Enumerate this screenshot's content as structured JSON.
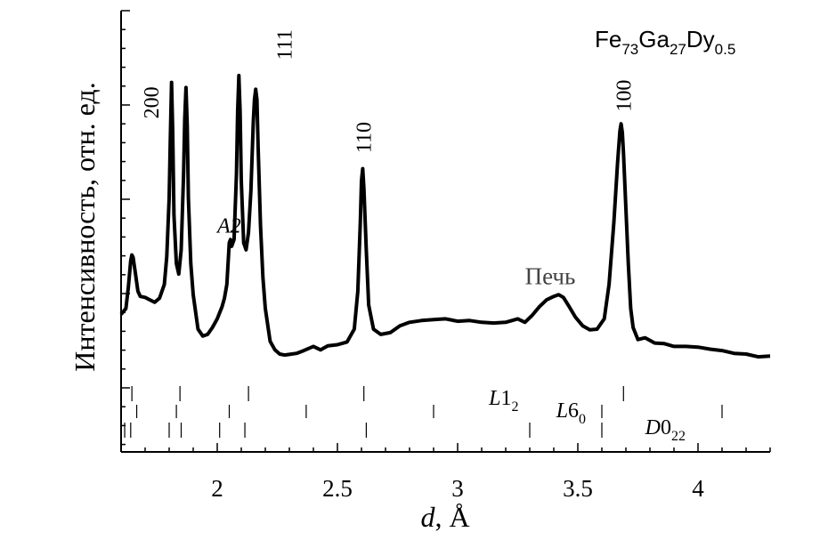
{
  "chart_data": {
    "type": "line",
    "title": "",
    "sample_label": {
      "main": "Fe",
      "s1": "73",
      "m2": "Ga",
      "s2": "27",
      "m3": "Dy",
      "s3": "0.5"
    },
    "xlabel": {
      "italic": "d",
      "rest": ", Å"
    },
    "ylabel": "Интенсивность, отн. ед.",
    "xlim": [
      1.6,
      4.3
    ],
    "ylim": [
      0,
      1
    ],
    "x_ticks": [
      {
        "v": 2,
        "label": "2"
      },
      {
        "v": 2.5,
        "label": "2.5"
      },
      {
        "v": 3,
        "label": "3"
      },
      {
        "v": 3.5,
        "label": "3.5"
      },
      {
        "v": 4,
        "label": "4"
      }
    ],
    "y_ticks_unlabeled": true,
    "grid": false,
    "series": [
      {
        "x": [
          1.6,
          1.62,
          1.63,
          1.64,
          1.645,
          1.65,
          1.66,
          1.67,
          1.68,
          1.7,
          1.72,
          1.74,
          1.76,
          1.78,
          1.79,
          1.8,
          1.805,
          1.81,
          1.815,
          1.82,
          1.83,
          1.84,
          1.85,
          1.86,
          1.865,
          1.87,
          1.875,
          1.88,
          1.89,
          1.9,
          1.92,
          1.94,
          1.96,
          1.98,
          2.0,
          2.02,
          2.03,
          2.04,
          2.05,
          2.055,
          2.06,
          2.07,
          2.08,
          2.085,
          2.09,
          2.095,
          2.1,
          2.11,
          2.12,
          2.13,
          2.14,
          2.15,
          2.155,
          2.16,
          2.165,
          2.17,
          2.18,
          2.19,
          2.2,
          2.22,
          2.24,
          2.26,
          2.28,
          2.3,
          2.33,
          2.36,
          2.4,
          2.43,
          2.46,
          2.5,
          2.54,
          2.57,
          2.585,
          2.595,
          2.6,
          2.605,
          2.61,
          2.62,
          2.63,
          2.65,
          2.68,
          2.72,
          2.76,
          2.8,
          2.85,
          2.9,
          2.95,
          3.0,
          3.05,
          3.1,
          3.15,
          3.2,
          3.25,
          3.28,
          3.31,
          3.34,
          3.37,
          3.4,
          3.42,
          3.44,
          3.46,
          3.49,
          3.52,
          3.55,
          3.58,
          3.61,
          3.63,
          3.65,
          3.665,
          3.675,
          3.68,
          3.685,
          3.69,
          3.7,
          3.71,
          3.72,
          3.73,
          3.75,
          3.78,
          3.82,
          3.86,
          3.9,
          3.95,
          4.0,
          4.05,
          4.1,
          4.15,
          4.2,
          4.25,
          4.3
        ],
        "y": [
          0.213,
          0.23,
          0.29,
          0.368,
          0.385,
          0.378,
          0.33,
          0.28,
          0.265,
          0.262,
          0.255,
          0.248,
          0.26,
          0.3,
          0.38,
          0.55,
          0.72,
          0.885,
          0.74,
          0.5,
          0.36,
          0.33,
          0.4,
          0.62,
          0.78,
          0.87,
          0.76,
          0.55,
          0.36,
          0.27,
          0.17,
          0.15,
          0.155,
          0.175,
          0.2,
          0.235,
          0.26,
          0.3,
          0.42,
          0.43,
          0.41,
          0.43,
          0.62,
          0.8,
          0.905,
          0.8,
          0.6,
          0.42,
          0.4,
          0.45,
          0.57,
          0.77,
          0.835,
          0.865,
          0.835,
          0.7,
          0.47,
          0.32,
          0.23,
          0.135,
          0.11,
          0.098,
          0.095,
          0.097,
          0.1,
          0.108,
          0.12,
          0.11,
          0.122,
          0.125,
          0.133,
          0.17,
          0.28,
          0.48,
          0.6,
          0.635,
          0.58,
          0.4,
          0.24,
          0.17,
          0.155,
          0.16,
          0.18,
          0.19,
          0.195,
          0.198,
          0.2,
          0.193,
          0.195,
          0.19,
          0.188,
          0.19,
          0.2,
          0.19,
          0.21,
          0.235,
          0.255,
          0.265,
          0.27,
          0.262,
          0.24,
          0.205,
          0.18,
          0.168,
          0.17,
          0.2,
          0.3,
          0.48,
          0.65,
          0.745,
          0.765,
          0.74,
          0.68,
          0.52,
          0.36,
          0.23,
          0.175,
          0.14,
          0.145,
          0.13,
          0.128,
          0.12,
          0.12,
          0.118,
          0.112,
          0.108,
          0.1,
          0.098,
          0.09,
          0.092
        ]
      }
    ],
    "peak_labels": [
      {
        "text": "200",
        "x": 1.725,
        "y": 0.78
      },
      {
        "text": "111",
        "x": 2.28,
        "y": 0.95
      },
      {
        "text": "110",
        "x": 2.61,
        "y": 0.68
      },
      {
        "text": "100",
        "x": 3.69,
        "y": 0.8
      }
    ],
    "annotations": [
      {
        "text": "A2",
        "x": 2.0,
        "y": 0.45,
        "italic": true
      },
      {
        "text": "Печь",
        "x": 3.28,
        "y": 0.3,
        "italic": false
      }
    ],
    "tick_rows": [
      {
        "name": "L12",
        "label_main": "L1",
        "label_sub": "2",
        "label_x": 3.13,
        "row": 0,
        "positions": [
          1.645,
          1.845,
          2.13,
          2.61,
          3.69
        ]
      },
      {
        "name": "L60",
        "label_main": "L6",
        "label_sub": "0",
        "label_x": 3.41,
        "row": 1,
        "positions": [
          1.665,
          1.83,
          2.05,
          2.37,
          2.9,
          3.6,
          4.1
        ]
      },
      {
        "name": "D022",
        "label_main": "D0",
        "label_sub": "22",
        "label_x": 3.78,
        "row": 2,
        "positions": [
          1.615,
          1.64,
          1.8,
          1.85,
          2.01,
          2.115,
          2.62,
          3.3,
          3.6
        ]
      }
    ]
  }
}
